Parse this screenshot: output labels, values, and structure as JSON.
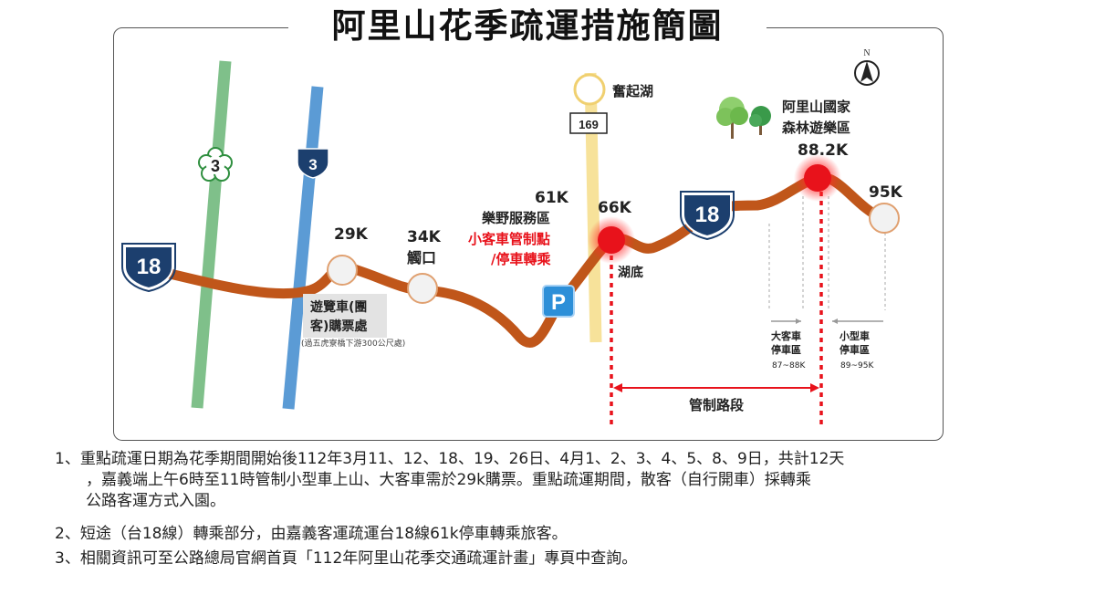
{
  "title": "阿里山花季疏運措施簡圖",
  "north_label": "N",
  "roads": {
    "r18_left": "18",
    "r18_right": "18",
    "r3_green": "3",
    "r3_blue": "3",
    "r169": "169"
  },
  "places": {
    "fenqihu": "奮起湖",
    "park_line1": "阿里山國家",
    "park_line2": "森林遊樂區",
    "km29": "29K",
    "km34": "34K",
    "chukou": "觸口",
    "km61": "61K",
    "service_area": "樂野服務區",
    "control_line1": "小客車管制點",
    "control_line2": "/停車轉乘",
    "km66": "66K",
    "hudi": "湖底",
    "km88": "88.2K",
    "km95": "95K",
    "ticket_line1": "遊覽車(團",
    "ticket_line2": "客)購票處",
    "ticket_note": "(過五虎寮橋下游300公尺處)",
    "parking_icon": "P",
    "bus_park_line1": "大客車",
    "bus_park_line2": "停車區",
    "bus_park_range": "87~88K",
    "car_park_line1": "小型車",
    "car_park_line2": "停車區",
    "car_park_range": "89~95K",
    "control_section": "管制路段"
  },
  "colors": {
    "route": "#c0561a",
    "control_point": "#e8121b",
    "road3_green": "#7fc08a",
    "road3_blue": "#5b9bd5",
    "road169": "#f7e29a",
    "shield": "#1c3f6e",
    "red_text": "#e8121b"
  },
  "notes": [
    {
      "num": "1、",
      "lines": [
        "重點疏運日期為花季期間開始後112年3月11、12、18、19、26日、4月1、2、3、4、5、8、9日，共計12天",
        "，嘉義端上午6時至11時管制小型車上山、大客車需於29k購票。重點疏運期間，散客（自行開車）採轉乘",
        "公路客運方式入園。"
      ]
    },
    {
      "num": "2、",
      "lines": [
        "短途（台18線）轉乘部分，由嘉義客運疏運台18線61k停車轉乘旅客。"
      ]
    },
    {
      "num": "3、",
      "lines": [
        "相關資訊可至公路總局官網首頁「112年阿里山花季交通疏運計畫」專頁中查詢。"
      ]
    }
  ]
}
